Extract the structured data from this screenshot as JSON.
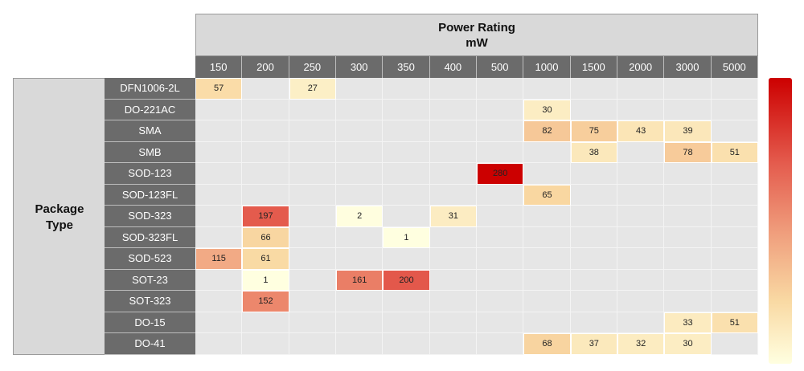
{
  "chart_data": {
    "type": "heatmap",
    "title": "Power Rating",
    "unit": "mW",
    "xlabel": "Power Rating mW",
    "ylabel": "Package Type",
    "x_categories": [
      "150",
      "200",
      "250",
      "300",
      "350",
      "400",
      "500",
      "1000",
      "1500",
      "2000",
      "3000",
      "5000"
    ],
    "y_categories": [
      "DFN1006-2L",
      "DO-221AC",
      "SMA",
      "SMB",
      "SOD-123",
      "SOD-123FL",
      "SOD-323",
      "SOD-323FL",
      "SOD-523",
      "SOT-23",
      "SOT-323",
      "DO-15",
      "DO-41"
    ],
    "cells": [
      {
        "row": "DFN1006-2L",
        "col": "150",
        "value": 57
      },
      {
        "row": "DFN1006-2L",
        "col": "250",
        "value": 27
      },
      {
        "row": "DO-221AC",
        "col": "1000",
        "value": 30
      },
      {
        "row": "SMA",
        "col": "1000",
        "value": 82
      },
      {
        "row": "SMA",
        "col": "1500",
        "value": 75
      },
      {
        "row": "SMA",
        "col": "2000",
        "value": 43
      },
      {
        "row": "SMA",
        "col": "3000",
        "value": 39
      },
      {
        "row": "SMB",
        "col": "1500",
        "value": 38
      },
      {
        "row": "SMB",
        "col": "3000",
        "value": 78
      },
      {
        "row": "SMB",
        "col": "5000",
        "value": 51
      },
      {
        "row": "SOD-123",
        "col": "500",
        "value": 280
      },
      {
        "row": "SOD-123FL",
        "col": "1000",
        "value": 65
      },
      {
        "row": "SOD-323",
        "col": "200",
        "value": 197
      },
      {
        "row": "SOD-323",
        "col": "300",
        "value": 2
      },
      {
        "row": "SOD-323",
        "col": "400",
        "value": 31
      },
      {
        "row": "SOD-323FL",
        "col": "200",
        "value": 66
      },
      {
        "row": "SOD-323FL",
        "col": "350",
        "value": 1
      },
      {
        "row": "SOD-523",
        "col": "150",
        "value": 115
      },
      {
        "row": "SOD-523",
        "col": "200",
        "value": 61
      },
      {
        "row": "SOT-23",
        "col": "200",
        "value": 1
      },
      {
        "row": "SOT-23",
        "col": "300",
        "value": 161
      },
      {
        "row": "SOT-23",
        "col": "350",
        "value": 200
      },
      {
        "row": "SOT-323",
        "col": "200",
        "value": 152
      },
      {
        "row": "DO-15",
        "col": "3000",
        "value": 33
      },
      {
        "row": "DO-15",
        "col": "5000",
        "value": 51
      },
      {
        "row": "DO-41",
        "col": "1000",
        "value": 68
      },
      {
        "row": "DO-41",
        "col": "1500",
        "value": 37
      },
      {
        "row": "DO-41",
        "col": "2000",
        "value": 32
      },
      {
        "row": "DO-41",
        "col": "3000",
        "value": 30
      }
    ],
    "color_scale": {
      "min": 1,
      "max": 280,
      "low_color": "#ffffe0",
      "high_color": "#cc0000"
    },
    "legend": "right",
    "grid": true
  }
}
